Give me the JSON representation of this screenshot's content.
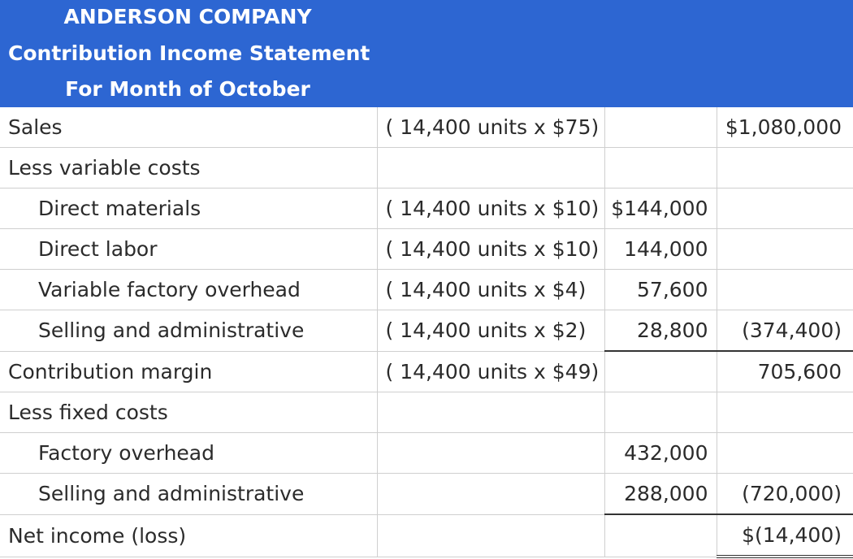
{
  "header": {
    "company": "ANDERSON COMPANY",
    "title": "Contribution Income Statement",
    "period": "For Month of October"
  },
  "rows": [
    {
      "label": "Sales",
      "calc": "( 14,400 units x $75)",
      "amount": "",
      "total": "$1,080,000"
    },
    {
      "label": "Less variable costs",
      "calc": "",
      "amount": "",
      "total": ""
    },
    {
      "label": "Direct materials",
      "calc": "( 14,400 units x $10)",
      "amount": "$144,000",
      "total": ""
    },
    {
      "label": "Direct labor",
      "calc": "( 14,400 units x $10)",
      "amount": "144,000",
      "total": ""
    },
    {
      "label": "Variable factory overhead",
      "calc": "( 14,400 units x $4)",
      "amount": "57,600",
      "total": ""
    },
    {
      "label": "Selling and administrative",
      "calc": "( 14,400 units x $2)",
      "amount": "28,800",
      "total": "(374,400)"
    },
    {
      "label": "Contribution margin",
      "calc": "( 14,400 units x $49)",
      "amount": "",
      "total": "705,600"
    },
    {
      "label": "Less fixed costs",
      "calc": "",
      "amount": "",
      "total": ""
    },
    {
      "label": "Factory overhead",
      "calc": "",
      "amount": "432,000",
      "total": ""
    },
    {
      "label": "Selling and administrative",
      "calc": "",
      "amount": "288,000",
      "total": "(720,000)"
    },
    {
      "label": "Net income (loss)",
      "calc": "",
      "amount": "",
      "total": "$(14,400)"
    }
  ]
}
